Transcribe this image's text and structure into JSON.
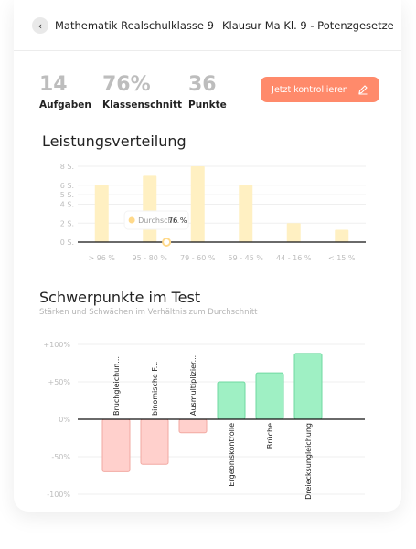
{
  "breadcrumb": {
    "items": [
      "Mathematik Realschulklasse 9",
      "Klausur Ma Kl. 9 - Potenzgesetze"
    ],
    "separator": "›",
    "back_icon": "chevron-left-icon"
  },
  "stats": [
    {
      "value": "14",
      "label": "Aufgaben"
    },
    {
      "value": "76%",
      "label": "Klassenschnitt"
    },
    {
      "value": "36",
      "label": "Punkte"
    }
  ],
  "cta": {
    "label": "Jetzt kontrollieren",
    "icon": "pencil-icon"
  },
  "colors": {
    "accent": "#ff8a6b",
    "bar_yellow": "#fff0c2",
    "bar_red": "#ffd0cc",
    "bar_green": "#9ff0c4"
  },
  "performance": {
    "title": "Leistungsverteilung",
    "tooltip_label": "Durchschn.",
    "tooltip_value": "76 %"
  },
  "focus": {
    "title": "Schwerpunkte im Test",
    "subtitle": "Stärken und Schwächen im Verhältnis zum Durchschnitt"
  },
  "chart_data": [
    {
      "type": "bar",
      "categories": [
        "> 96 %",
        "95 - 80 %",
        "79 - 60 %",
        "59 - 45 %",
        "44 - 16 %",
        "< 15 %"
      ],
      "values": [
        6,
        7,
        8,
        6,
        2,
        1.3
      ],
      "ylim": [
        0,
        8
      ],
      "yticks": [
        0,
        2,
        4,
        5,
        6,
        8
      ],
      "ytick_labels": [
        "0 S.",
        "2 S.",
        "4 S.",
        "5 S.",
        "6 S.",
        "8 S."
      ],
      "average_marker": 76
    },
    {
      "type": "bar",
      "categories": [
        "Bruchgleichun...",
        "binomische F...",
        "Ausmultiplizier...",
        "Ergebniskontrolle",
        "Brüche",
        "Dreiecksungleichung"
      ],
      "values": [
        -70,
        -60,
        -18,
        50,
        62,
        88
      ],
      "ylim": [
        -100,
        100
      ],
      "yticks": [
        100,
        50,
        0,
        -50,
        -100
      ],
      "ytick_labels": [
        "+100%",
        "+50%",
        "0%",
        "-50%",
        "-100%"
      ]
    }
  ]
}
